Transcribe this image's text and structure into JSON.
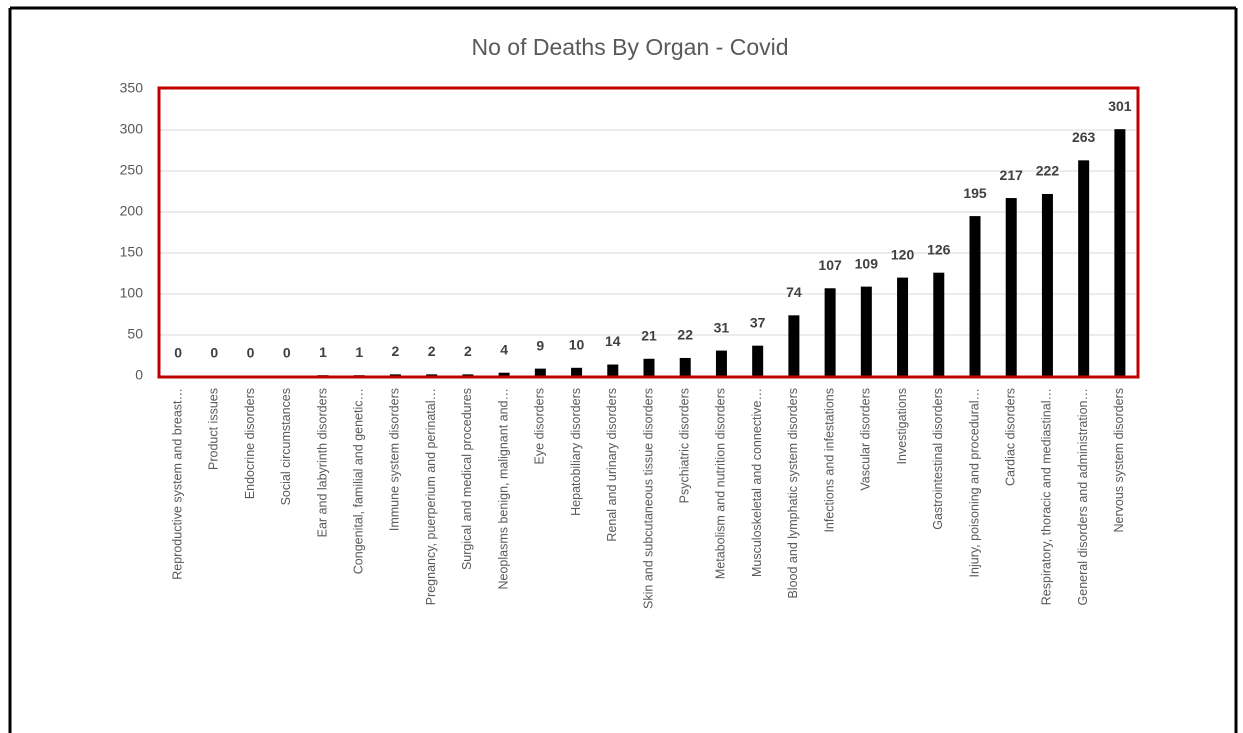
{
  "chart_data": {
    "type": "bar",
    "title": "No of Deaths By Organ - Covid",
    "categories": [
      "Reproductive system and breast…",
      "Product issues",
      "Endocrine disorders",
      "Social circumstances",
      "Ear and labyrinth disorders",
      "Congenital, familial and genetic…",
      "Immune system disorders",
      "Pregnancy, puerperium and perinatal…",
      "Surgical and medical procedures",
      "Neoplasms benign, malignant and…",
      "Eye disorders",
      "Hepatobiliary disorders",
      "Renal and urinary disorders",
      "Skin and subcutaneous tissue disorders",
      "Psychiatric disorders",
      "Metabolism and nutrition disorders",
      "Musculoskeletal and connective…",
      "Blood and lymphatic system disorders",
      "Infections and infestations",
      "Vascular disorders",
      "Investigations",
      "Gastrointestinal disorders",
      "Injury, poisoning and procedural…",
      "Cardiac disorders",
      "Respiratory, thoracic and mediastinal…",
      "General disorders and administration…",
      "Nervous system disorders"
    ],
    "values": [
      0,
      0,
      0,
      0,
      1,
      1,
      2,
      2,
      2,
      4,
      9,
      10,
      14,
      21,
      22,
      31,
      37,
      74,
      107,
      109,
      120,
      126,
      195,
      217,
      222,
      263,
      301
    ],
    "color": "#000000",
    "ylim": [
      0,
      350
    ],
    "yticks": [
      0,
      50,
      100,
      150,
      200,
      250,
      300,
      350
    ],
    "grid": true
  }
}
